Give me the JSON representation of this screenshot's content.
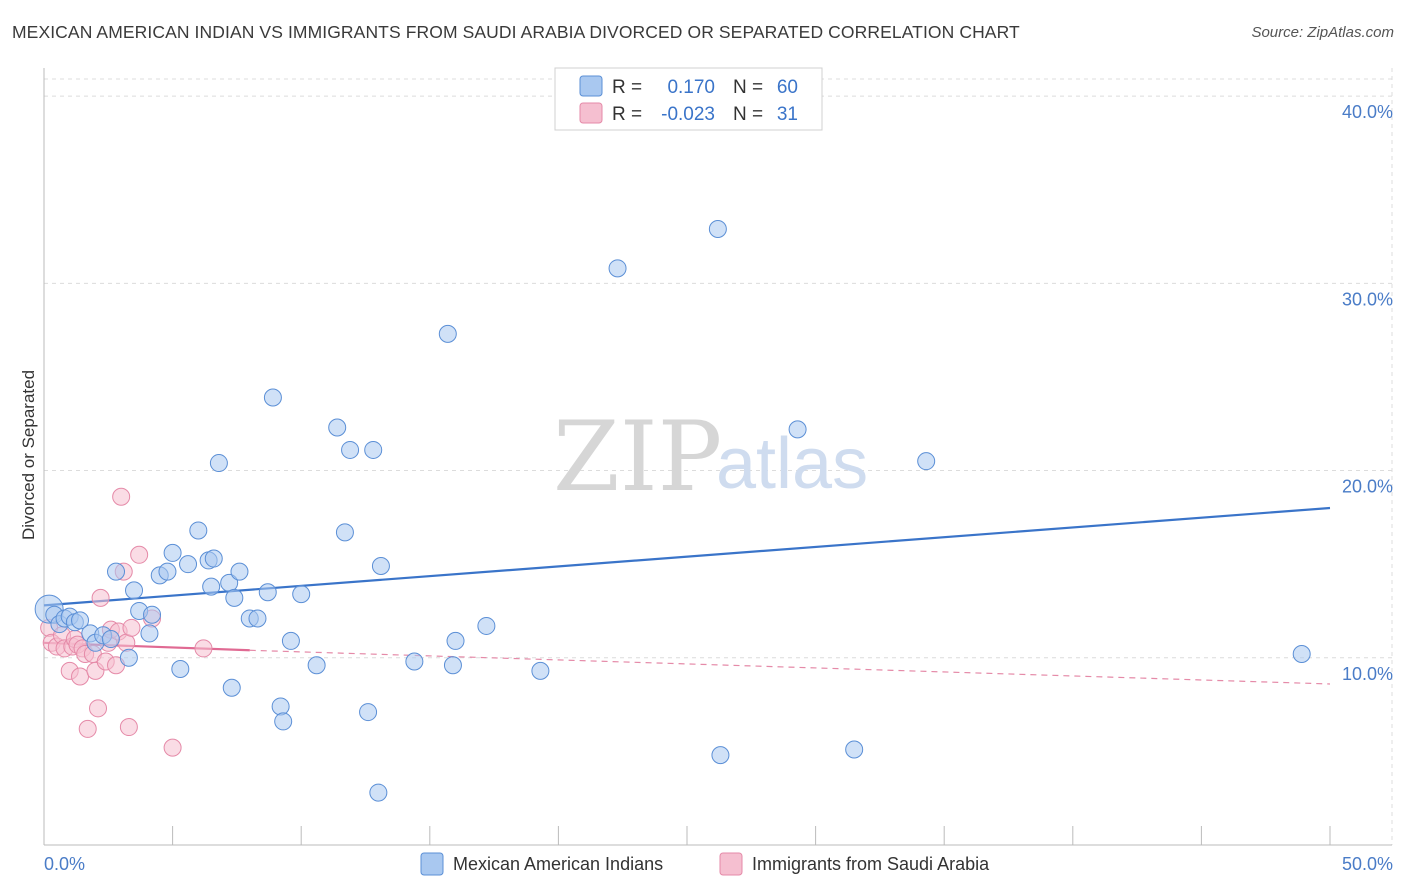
{
  "header": {
    "title": "MEXICAN AMERICAN INDIAN VS IMMIGRANTS FROM SAUDI ARABIA DIVORCED OR SEPARATED CORRELATION CHART",
    "source": "Source: ZipAtlas.com"
  },
  "watermark": {
    "zip": "ZIP",
    "atlas": "atlas"
  },
  "legend": {
    "rows": [
      {
        "r_label": "R =",
        "r_value": "0.170",
        "n_label": "N =",
        "n_value": "60",
        "color": "#a9c8f0"
      },
      {
        "r_label": "R =",
        "r_value": "-0.023",
        "n_label": "N =",
        "n_value": "31",
        "color": "#f5bfd0"
      }
    ]
  },
  "bottom_legend": {
    "series1": "Mexican American Indians",
    "series2": "Immigrants from Saudi Arabia"
  },
  "chart_data": {
    "type": "scatter",
    "title": "MEXICAN AMERICAN INDIAN VS IMMIGRANTS FROM SAUDI ARABIA DIVORCED OR SEPARATED CORRELATION CHART",
    "xlabel": "",
    "ylabel": "Divorced or Separated",
    "xlim": [
      0,
      50
    ],
    "ylim": [
      0,
      41.5
    ],
    "x_tick_labels": [
      "0.0%",
      "50.0%"
    ],
    "y_ticks": [
      10,
      20,
      30,
      40
    ],
    "y_tick_labels": [
      "10.0%",
      "20.0%",
      "30.0%",
      "40.0%"
    ],
    "grid": true,
    "series": [
      {
        "name": "Mexican American Indians",
        "color": "#5b8fd6",
        "fill": "#a9c8f0",
        "trend": {
          "x": [
            0,
            50
          ],
          "y": [
            12.8,
            18.0
          ],
          "style": "solid"
        },
        "points": [
          [
            0.2,
            12.6
          ],
          [
            0.4,
            12.3
          ],
          [
            0.6,
            11.8
          ],
          [
            0.8,
            12.1
          ],
          [
            1.0,
            12.2
          ],
          [
            1.2,
            11.9
          ],
          [
            1.4,
            12.0
          ],
          [
            1.8,
            11.3
          ],
          [
            2.0,
            10.8
          ],
          [
            2.3,
            11.2
          ],
          [
            2.6,
            11.0
          ],
          [
            2.8,
            14.6
          ],
          [
            3.3,
            10.0
          ],
          [
            3.5,
            13.6
          ],
          [
            3.7,
            12.5
          ],
          [
            4.1,
            11.3
          ],
          [
            4.2,
            12.3
          ],
          [
            4.5,
            14.4
          ],
          [
            4.8,
            14.6
          ],
          [
            5.0,
            15.6
          ],
          [
            5.3,
            9.4
          ],
          [
            5.6,
            15.0
          ],
          [
            6.0,
            16.8
          ],
          [
            6.4,
            15.2
          ],
          [
            6.5,
            13.8
          ],
          [
            6.6,
            15.3
          ],
          [
            6.8,
            20.4
          ],
          [
            7.2,
            14.0
          ],
          [
            7.3,
            8.4
          ],
          [
            7.4,
            13.2
          ],
          [
            7.6,
            14.6
          ],
          [
            8.0,
            12.1
          ],
          [
            8.3,
            12.1
          ],
          [
            8.7,
            13.5
          ],
          [
            8.9,
            23.9
          ],
          [
            9.2,
            7.4
          ],
          [
            9.3,
            6.6
          ],
          [
            9.6,
            10.9
          ],
          [
            10.0,
            13.4
          ],
          [
            10.6,
            9.6
          ],
          [
            11.4,
            22.3
          ],
          [
            11.7,
            16.7
          ],
          [
            11.9,
            21.1
          ],
          [
            12.6,
            7.1
          ],
          [
            12.8,
            21.1
          ],
          [
            13.0,
            2.8
          ],
          [
            13.1,
            14.9
          ],
          [
            14.4,
            9.8
          ],
          [
            15.7,
            27.3
          ],
          [
            15.9,
            9.6
          ],
          [
            16.0,
            10.9
          ],
          [
            17.2,
            11.7
          ],
          [
            19.3,
            9.3
          ],
          [
            22.3,
            30.8
          ],
          [
            26.2,
            32.9
          ],
          [
            26.3,
            4.8
          ],
          [
            29.3,
            22.2
          ],
          [
            31.5,
            5.1
          ],
          [
            34.3,
            20.5
          ],
          [
            48.9,
            10.2
          ]
        ]
      },
      {
        "name": "Immigrants from Saudi Arabia",
        "color": "#e58aa8",
        "fill": "#f5bfd0",
        "trend": {
          "x": [
            0,
            8
          ],
          "y": [
            10.8,
            10.4
          ],
          "style": "solid",
          "dashed_x": [
            8,
            50
          ],
          "dashed_y": [
            10.4,
            8.6
          ]
        },
        "points": [
          [
            0.2,
            11.6
          ],
          [
            0.3,
            10.8
          ],
          [
            0.5,
            10.6
          ],
          [
            0.7,
            11.2
          ],
          [
            0.8,
            10.5
          ],
          [
            1.0,
            9.3
          ],
          [
            1.1,
            10.6
          ],
          [
            1.2,
            11.0
          ],
          [
            1.3,
            10.7
          ],
          [
            1.4,
            9.0
          ],
          [
            1.5,
            10.5
          ],
          [
            1.6,
            10.2
          ],
          [
            1.7,
            6.2
          ],
          [
            1.9,
            10.2
          ],
          [
            2.0,
            9.3
          ],
          [
            2.1,
            7.3
          ],
          [
            2.2,
            13.2
          ],
          [
            2.4,
            9.8
          ],
          [
            2.5,
            10.8
          ],
          [
            2.6,
            11.5
          ],
          [
            2.8,
            9.6
          ],
          [
            2.9,
            11.4
          ],
          [
            3.0,
            18.6
          ],
          [
            3.1,
            14.6
          ],
          [
            3.2,
            10.8
          ],
          [
            3.3,
            6.3
          ],
          [
            3.4,
            11.6
          ],
          [
            3.7,
            15.5
          ],
          [
            4.2,
            12.1
          ],
          [
            5.0,
            5.2
          ],
          [
            6.2,
            10.5
          ]
        ]
      }
    ]
  }
}
